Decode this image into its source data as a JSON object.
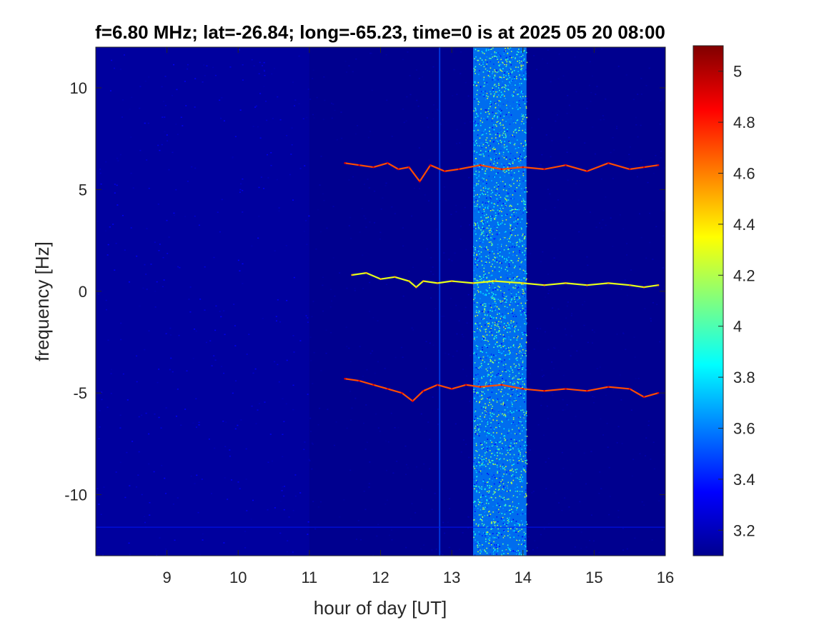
{
  "chart_data": {
    "type": "heatmap",
    "title": "f=6.80 MHz;  lat=-26.84; long=-65.23, time=0 is at 2025 05 20 08:00",
    "xlabel": "hour of day [UT]",
    "ylabel": "frequency [Hz]",
    "xlim": [
      8,
      16
    ],
    "ylim": [
      -13,
      12
    ],
    "xticks": [
      9,
      10,
      11,
      12,
      13,
      14,
      15,
      16
    ],
    "xtick_labels": [
      "9",
      "10",
      "11",
      "12",
      "13",
      "14",
      "15",
      "16"
    ],
    "yticks": [
      -10,
      -5,
      0,
      5,
      10
    ],
    "ytick_labels": [
      "-10",
      "-5",
      "0",
      "5",
      "10"
    ],
    "colorbar": {
      "colormap": "jet",
      "clim": [
        3.1,
        5.1
      ],
      "ticks": [
        3.2,
        3.4,
        3.6,
        3.8,
        4,
        4.2,
        4.4,
        4.6,
        4.8,
        5
      ],
      "tick_labels": [
        "3.2",
        "3.4",
        "3.6",
        "3.8",
        "4",
        "4.2",
        "4.4",
        "4.6",
        "4.8",
        "5"
      ]
    },
    "background_level": 3.15,
    "features": [
      {
        "kind": "broadband_noise",
        "x_range": [
          13.3,
          14.05
        ],
        "y_range": [
          -13,
          12
        ],
        "level": 3.9
      },
      {
        "kind": "weak_vertical_line",
        "x": 12.83,
        "y_range": [
          -13,
          12
        ],
        "level": 3.5
      },
      {
        "kind": "elevated_noise_region",
        "x_range": [
          8,
          11
        ],
        "y_range": [
          -13,
          12
        ],
        "level": 3.3
      },
      {
        "kind": "horizontal_line",
        "y": -11.6,
        "x_range": [
          8,
          16
        ],
        "level": 3.4
      }
    ],
    "series": [
      {
        "x": [
          11.5,
          11.7,
          11.9,
          12.1,
          12.25,
          12.4,
          12.55,
          12.7,
          12.9,
          13.1,
          13.4,
          13.7,
          14.0,
          14.3,
          14.6,
          14.9,
          15.2,
          15.5,
          15.7,
          15.9
        ],
        "y": [
          6.3,
          6.2,
          6.1,
          6.3,
          6.0,
          6.1,
          5.4,
          6.2,
          5.9,
          6.0,
          6.2,
          6.0,
          6.1,
          6.0,
          6.2,
          5.9,
          6.3,
          6.0,
          6.1,
          6.2
        ],
        "level": 4.7
      },
      {
        "x": [
          11.6,
          11.8,
          12.0,
          12.2,
          12.4,
          12.5,
          12.6,
          12.8,
          13.0,
          13.3,
          13.6,
          14.0,
          14.3,
          14.6,
          14.9,
          15.2,
          15.5,
          15.7,
          15.9
        ],
        "y": [
          0.8,
          0.9,
          0.6,
          0.7,
          0.5,
          0.2,
          0.5,
          0.4,
          0.5,
          0.4,
          0.5,
          0.4,
          0.3,
          0.4,
          0.3,
          0.4,
          0.3,
          0.2,
          0.3
        ],
        "level": 4.3
      },
      {
        "x": [
          11.5,
          11.7,
          11.9,
          12.1,
          12.3,
          12.45,
          12.6,
          12.8,
          13.0,
          13.2,
          13.4,
          13.7,
          14.0,
          14.3,
          14.6,
          14.9,
          15.2,
          15.5,
          15.7,
          15.9
        ],
        "y": [
          -4.3,
          -4.4,
          -4.6,
          -4.8,
          -5.0,
          -5.4,
          -4.9,
          -4.6,
          -4.8,
          -4.6,
          -4.7,
          -4.6,
          -4.8,
          -4.9,
          -4.8,
          -4.9,
          -4.7,
          -4.8,
          -5.2,
          -5.0
        ],
        "level": 4.7
      }
    ]
  }
}
